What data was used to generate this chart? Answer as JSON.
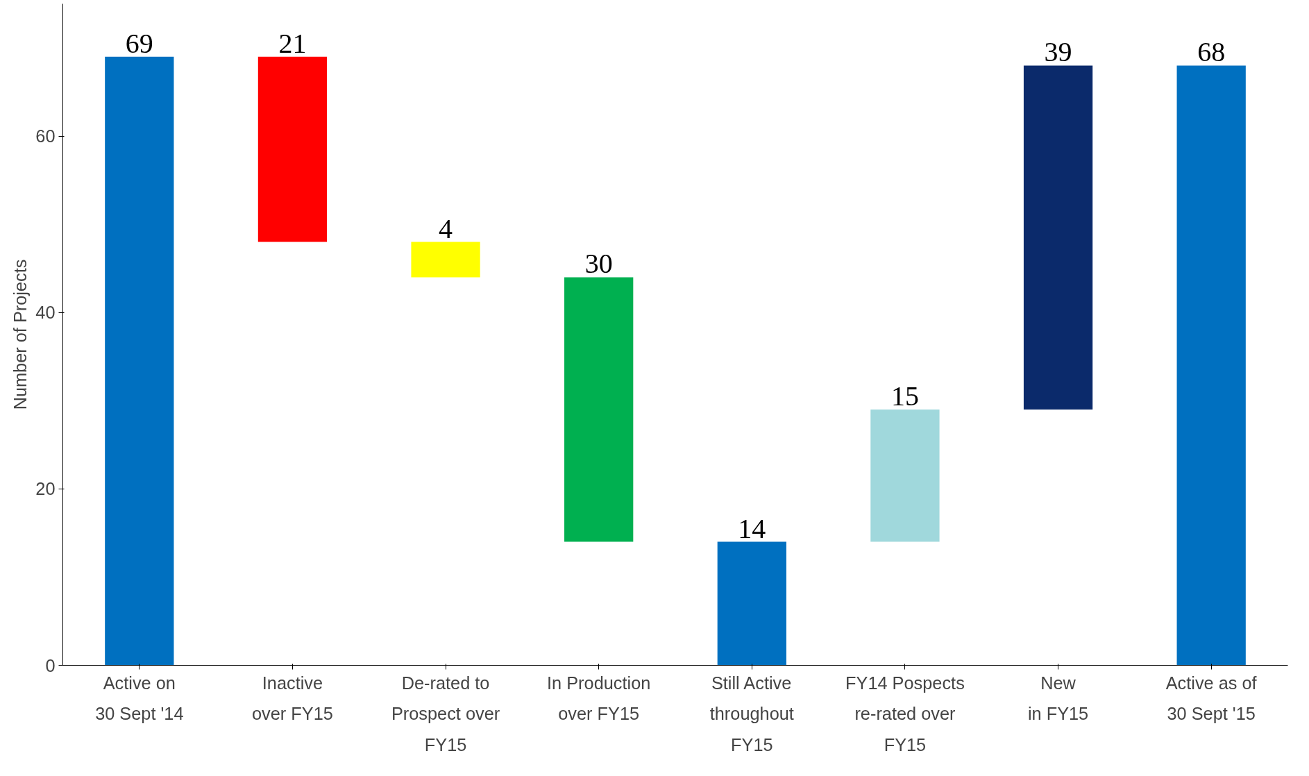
{
  "chart_data": {
    "type": "bar",
    "ylabel": "Number of Projects",
    "categories": [
      "Active on\n30 Sept '14",
      "Inactive\nover FY15",
      "De-rated to\nProspect over\nFY15",
      "In Production\nover FY15",
      "Still Active\nthroughout\nFY15",
      "FY14 Pospects\nre-rated over\nFY15",
      "New\nin FY15",
      "Active as of\n30 Sept '15"
    ],
    "values": [
      69,
      21,
      4,
      30,
      14,
      15,
      39,
      68
    ],
    "base": [
      0,
      48,
      44,
      14,
      0,
      14,
      29,
      0
    ],
    "colors": [
      "#0070c0",
      "#ff0000",
      "#ffff00",
      "#00b050",
      "#0070c0",
      "#a0d8dc",
      "#0b2a6b",
      "#0070c0"
    ],
    "ylim": [
      0,
      75
    ],
    "yticks": [
      0,
      20,
      40,
      60
    ],
    "grid": false,
    "data_labels": true
  }
}
